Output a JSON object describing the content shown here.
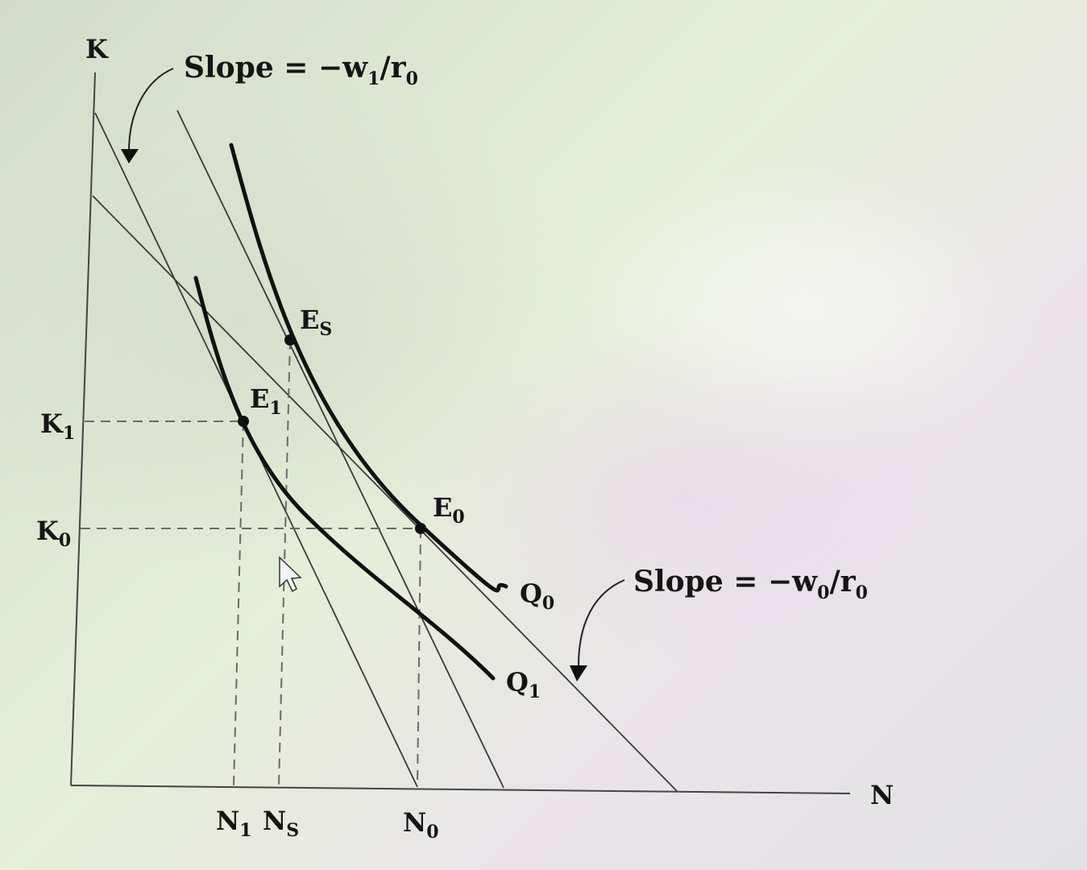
{
  "axes": {
    "y_label": "K",
    "x_label": "N"
  },
  "annotations": {
    "slope_top": {
      "main": "Slope = −w",
      "sub": "1",
      "tail": "/r",
      "tail_sub": "0"
    },
    "slope_bottom": {
      "main": "Slope = −w",
      "sub": "0",
      "tail": "/r",
      "tail_sub": "0"
    }
  },
  "y_ticks": {
    "k1": {
      "main": "K",
      "sub": "1"
    },
    "k0": {
      "main": "K",
      "sub": "0"
    }
  },
  "x_ticks": {
    "n1": {
      "main": "N",
      "sub": "1"
    },
    "ns": {
      "main": "N",
      "sub": "S"
    },
    "n0": {
      "main": "N",
      "sub": "0"
    }
  },
  "points": {
    "es": {
      "main": "E",
      "sub": "S"
    },
    "e1": {
      "main": "E",
      "sub": "1"
    },
    "e0": {
      "main": "E",
      "sub": "0"
    }
  },
  "curves": {
    "q0": {
      "main": "Q",
      "sub": "0"
    },
    "q1": {
      "main": "Q",
      "sub": "1"
    }
  },
  "colors": {
    "ink": "#151515",
    "line": "#3a3a3a",
    "dash": "#6a6a6a"
  }
}
